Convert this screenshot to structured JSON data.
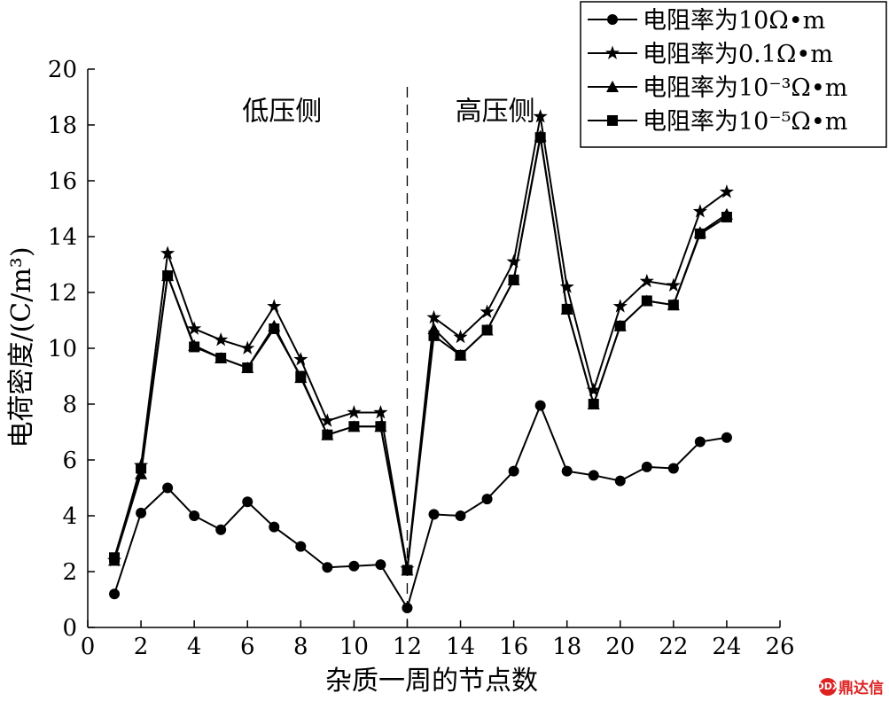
{
  "chart_data": {
    "type": "line",
    "xlabel": "杂质一周的节点数",
    "ylabel": "电荷密度/(C/m³)",
    "xlim": [
      0,
      26
    ],
    "ylim": [
      0,
      20
    ],
    "xticks": [
      0,
      2,
      4,
      6,
      8,
      10,
      12,
      14,
      16,
      18,
      20,
      22,
      24,
      26
    ],
    "yticks": [
      0,
      2,
      4,
      6,
      8,
      10,
      12,
      14,
      16,
      18,
      20
    ],
    "legend_position": "top-right",
    "annotations": [
      {
        "text": "低压侧",
        "x": 7.3,
        "y": 18.5
      },
      {
        "text": "高压侧",
        "x": 15.3,
        "y": 18.5
      }
    ],
    "divider_x": 12,
    "x": [
      1,
      2,
      3,
      4,
      5,
      6,
      7,
      8,
      9,
      10,
      11,
      12,
      13,
      14,
      15,
      16,
      17,
      18,
      19,
      20,
      21,
      22,
      23,
      24
    ],
    "series": [
      {
        "name": "电阻率为10Ω•m",
        "marker": "circle",
        "values": [
          1.2,
          4.1,
          5.0,
          4.0,
          3.5,
          4.5,
          3.6,
          2.9,
          2.15,
          2.2,
          2.25,
          0.7,
          4.05,
          4.0,
          4.6,
          5.6,
          7.95,
          5.6,
          5.45,
          5.25,
          5.75,
          5.7,
          6.65,
          6.8
        ]
      },
      {
        "name": "电阻率为0.1Ω•m",
        "marker": "star",
        "values": [
          2.4,
          5.8,
          13.4,
          10.7,
          10.3,
          10.0,
          11.5,
          9.6,
          7.4,
          7.7,
          7.7,
          2.1,
          11.1,
          10.4,
          11.3,
          13.1,
          18.3,
          12.2,
          8.5,
          11.5,
          12.4,
          12.25,
          14.9,
          15.6
        ]
      },
      {
        "name": "电阻率为10⁻³Ω•m",
        "marker": "triangle",
        "values": [
          2.4,
          5.5,
          12.6,
          10.1,
          9.65,
          9.3,
          10.8,
          8.95,
          6.9,
          7.2,
          7.2,
          2.05,
          10.7,
          9.75,
          10.65,
          12.45,
          17.6,
          11.4,
          8.0,
          10.8,
          11.7,
          11.55,
          14.15,
          14.8
        ]
      },
      {
        "name": "电阻率为10⁻⁵Ω•m",
        "marker": "square",
        "values": [
          2.5,
          5.7,
          12.6,
          10.05,
          9.65,
          9.3,
          10.7,
          9.0,
          6.9,
          7.2,
          7.2,
          2.05,
          10.45,
          9.75,
          10.65,
          12.45,
          17.55,
          11.4,
          8.0,
          10.8,
          11.7,
          11.55,
          14.1,
          14.7
        ]
      }
    ]
  },
  "watermark": {
    "text": "鼎达信",
    "logo_text": "DDX"
  }
}
